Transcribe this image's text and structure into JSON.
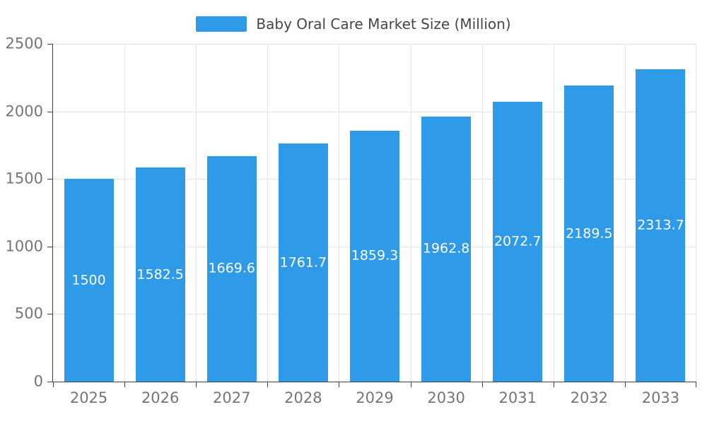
{
  "legend": {
    "label": "Baby Oral Care Market Size (Million)",
    "swatch_color": "#2F9BE8"
  },
  "chart_data": {
    "type": "bar",
    "title": "Baby Oral Care Market Size (Million)",
    "categories": [
      "2025",
      "2026",
      "2027",
      "2028",
      "2029",
      "2030",
      "2031",
      "2032",
      "2033"
    ],
    "values": [
      1500,
      1582.5,
      1669.6,
      1761.7,
      1859.3,
      1962.8,
      2072.7,
      2189.5,
      2313.7
    ],
    "value_labels": [
      "1500",
      "1582.5",
      "1669.6",
      "1761.7",
      "1859.3",
      "1962.8",
      "2072.7",
      "2189.5",
      "2313.7"
    ],
    "xlabel": "",
    "ylabel": "",
    "ylim": [
      0,
      2500
    ],
    "y_ticks": [
      0,
      500,
      1000,
      1500,
      2000,
      2500
    ],
    "grid": true,
    "legend_position": "top-center",
    "bar_color": "#2F9BE8",
    "value_label_color": "#FFFFFF",
    "axis_text_color": "#757575",
    "grid_color": "#E4E4E4",
    "axis_line_color": "#424242"
  }
}
